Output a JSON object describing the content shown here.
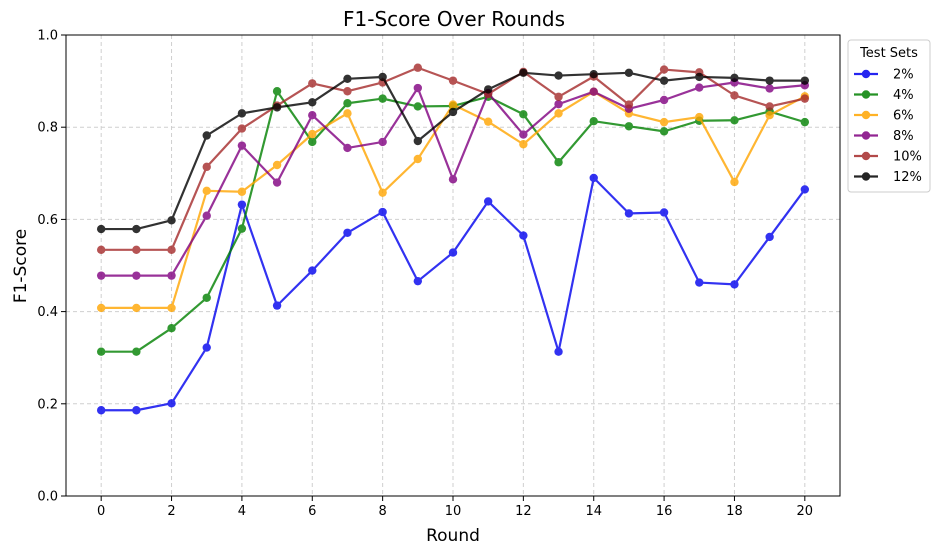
{
  "chart_data": {
    "type": "line",
    "title": "F1-Score Over Rounds",
    "xlabel": "Round",
    "ylabel": "F1-Score",
    "xlim": [
      -1,
      21
    ],
    "ylim": [
      0,
      1
    ],
    "xticks": [
      0,
      2,
      4,
      6,
      8,
      10,
      12,
      14,
      16,
      18,
      20
    ],
    "yticks": [
      0.0,
      0.2,
      0.4,
      0.6,
      0.8,
      1.0
    ],
    "xtick_labels": [
      "0",
      "2",
      "4",
      "6",
      "8",
      "10",
      "12",
      "14",
      "16",
      "18",
      "20"
    ],
    "ytick_labels": [
      "0.0",
      "0.2",
      "0.4",
      "0.6",
      "0.8",
      "1.0"
    ],
    "grid": true,
    "legend": {
      "title": "Test Sets",
      "placement": "outside-right-top"
    },
    "x": [
      0,
      1,
      2,
      3,
      4,
      5,
      6,
      7,
      8,
      9,
      10,
      11,
      12,
      13,
      14,
      15,
      16,
      17,
      18,
      19,
      20
    ],
    "series": [
      {
        "name": "2%",
        "color": "#0000ee",
        "values": [
          0.186,
          0.186,
          0.201,
          0.322,
          0.632,
          0.413,
          0.489,
          0.571,
          0.616,
          0.466,
          0.528,
          0.639,
          0.565,
          0.313,
          0.69,
          0.613,
          0.615,
          0.463,
          0.459,
          0.562,
          0.665
        ]
      },
      {
        "name": "4%",
        "color": "#008000",
        "values": [
          0.313,
          0.313,
          0.364,
          0.43,
          0.58,
          0.878,
          0.768,
          0.852,
          0.862,
          0.845,
          0.846,
          0.866,
          0.828,
          0.724,
          0.813,
          0.802,
          0.791,
          0.814,
          0.815,
          0.834,
          0.811
        ]
      },
      {
        "name": "6%",
        "color": "#ffa500",
        "values": [
          0.408,
          0.408,
          0.408,
          0.662,
          0.66,
          0.718,
          0.785,
          0.83,
          0.658,
          0.731,
          0.849,
          0.812,
          0.763,
          0.83,
          0.877,
          0.83,
          0.811,
          0.822,
          0.681,
          0.826,
          0.867
        ]
      },
      {
        "name": "8%",
        "color": "#800080",
        "values": [
          0.478,
          0.478,
          0.478,
          0.608,
          0.76,
          0.68,
          0.826,
          0.755,
          0.768,
          0.885,
          0.687,
          0.874,
          0.784,
          0.85,
          0.877,
          0.84,
          0.859,
          0.886,
          0.897,
          0.884,
          0.891
        ]
      },
      {
        "name": "10%",
        "color": "#a52a2a",
        "values": [
          0.534,
          0.534,
          0.534,
          0.714,
          0.797,
          0.847,
          0.895,
          0.878,
          0.897,
          0.929,
          0.901,
          0.872,
          0.92,
          0.866,
          0.91,
          0.849,
          0.925,
          0.919,
          0.869,
          0.845,
          0.862
        ]
      },
      {
        "name": "12%",
        "color": "#000000",
        "values": [
          0.579,
          0.579,
          0.598,
          0.782,
          0.83,
          0.843,
          0.854,
          0.905,
          0.909,
          0.77,
          0.833,
          0.882,
          0.918,
          0.912,
          0.915,
          0.918,
          0.901,
          0.909,
          0.907,
          0.901,
          0.901
        ]
      }
    ]
  }
}
